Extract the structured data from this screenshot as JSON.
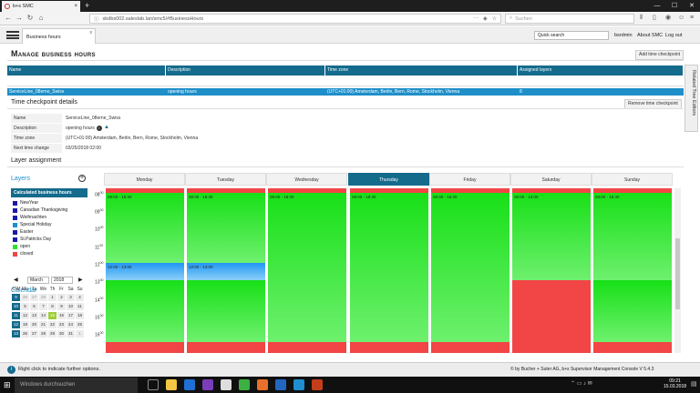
{
  "browser": {
    "tab_title": "b+s SMC",
    "tab_close": "×",
    "new_tab": "+",
    "url": "sbdbs002.saleslab.lan/smc5/#BusinessHours",
    "search_placeholder": "Suchen",
    "win_min": "—",
    "win_max": "☐",
    "win_close": "✕"
  },
  "app": {
    "tab_label": "Business hours",
    "tab_close": "x",
    "quick_search_placeholder": "Quick search",
    "user": "bsrdmin",
    "about": "About SMC",
    "logout": "Log out"
  },
  "page": {
    "title": "Manage business hours",
    "add_button": "Add time checkpoint",
    "remove_button": "Remove time checkpoint",
    "side_tab": "Related Tree Editors",
    "table": {
      "columns": [
        "Name",
        "Description",
        "Time zone",
        "Assigned layers"
      ],
      "row": [
        "ServiceLine_08erne_Swiss",
        "opening hours",
        "(UTC+01:00) Amsterdam, Berlin, Bern, Rome, Stockholm, Vienna",
        "8"
      ]
    },
    "details": {
      "title": "Time checkpoint details",
      "rows": [
        {
          "label": "Name",
          "value": "ServiceLine_08erne_Swiss"
        },
        {
          "label": "Description",
          "value": "opening hours"
        },
        {
          "label": "Time zone",
          "value": "(UTC+01:00) Amsterdam, Berlin, Bern, Rome, Stockholm, Vienna"
        },
        {
          "label": "Next time change",
          "value": "03/25/2018 02:00"
        }
      ]
    },
    "layer_assignment": "Layer assignment"
  },
  "layers": {
    "title": "Layers",
    "add": "+",
    "selected": "Calculated business hours",
    "items": [
      {
        "label": "NewYear",
        "color": "#1a1aa8"
      },
      {
        "label": "Canadian Thanksgiving",
        "color": "#1a1aa8"
      },
      {
        "label": "Weihnachten",
        "color": "#1a1aa8"
      },
      {
        "label": "Special Holiday",
        "color": "#1e8fc8"
      },
      {
        "label": "Easter",
        "color": "#1a1aa8"
      },
      {
        "label": "St.Patricks Day",
        "color": "#1a1aa8"
      },
      {
        "label": "open",
        "color": "#2ee02e"
      },
      {
        "label": "closed",
        "color": "#f24545"
      }
    ]
  },
  "calendar": {
    "title": "Calendar",
    "month": "March",
    "year": "2018",
    "prev": "◀",
    "next": "▶",
    "headers": [
      "CW",
      "Mo",
      "Tu",
      "We",
      "Th",
      "Fr",
      "Sa",
      "Su"
    ],
    "weeks": [
      [
        "9",
        "26",
        "27",
        "28",
        "1",
        "2",
        "3",
        "4"
      ],
      [
        "10",
        "5",
        "6",
        "7",
        "8",
        "9",
        "10",
        "11"
      ],
      [
        "11",
        "12",
        "13",
        "14",
        "15",
        "16",
        "17",
        "18"
      ],
      [
        "12",
        "19",
        "20",
        "21",
        "22",
        "23",
        "24",
        "25"
      ],
      [
        "13",
        "26",
        "27",
        "28",
        "29",
        "30",
        "31",
        "1"
      ]
    ]
  },
  "schedule": {
    "days": [
      "Monday",
      "Tuesday",
      "Wednesday",
      "Thursday",
      "Friday",
      "Saturday",
      "Sunday"
    ],
    "selected_day": "Thursday",
    "hour_labels": [
      "08",
      "09",
      "10",
      "11",
      "12",
      "13",
      "14",
      "15",
      "16"
    ],
    "hour_suffix": "00",
    "colors": {
      "open": "#18e018",
      "closed": "#f24545",
      "lunch": "#2196f3"
    },
    "segment_labels": {
      "weekday_morning": "08:00 - 18:30",
      "lunch": "12:00 - 13:00",
      "saturday": "08:00 - 13:00"
    }
  },
  "status": {
    "hint": "Right click to indicate further options.",
    "copyright": "© by Bucher + Suter AG, b+s Supervisor Management Console V 5.4.3"
  },
  "taskbar": {
    "search_placeholder": "Windows durchsuchen",
    "time": "09:21",
    "date": "15.03.2018"
  }
}
